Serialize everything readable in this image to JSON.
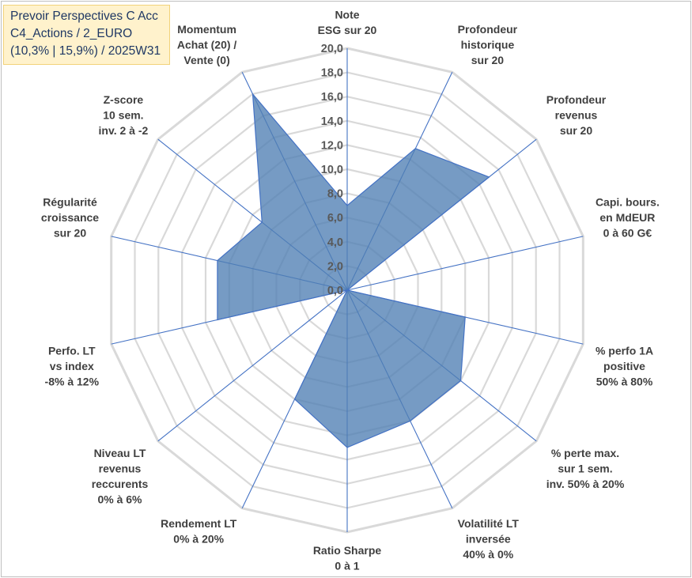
{
  "title_box": {
    "line1": "Prevoir Perspectives C Acc",
    "line2": "C4_Actions / 2_EURO",
    "line3": "(10,3% | 15,9%) / 2025W31"
  },
  "colors": {
    "grid": "#d9d9d9",
    "spoke": "#4472c4",
    "fill": "#4f7fb3",
    "stroke": "#4472c4",
    "title_bg": "#fff2cc",
    "title_text": "#1f3864"
  },
  "chart_data": {
    "type": "radar",
    "rmin": 0,
    "rmax": 20,
    "tick_step": 2,
    "ticks": [
      "0,0",
      "2,0",
      "4,0",
      "6,0",
      "8,0",
      "10,0",
      "12,0",
      "14,0",
      "16,0",
      "18,0",
      "20,0"
    ],
    "axes": [
      [
        "Note",
        "ESG sur 20"
      ],
      [
        "Profondeur",
        "historique",
        "sur 20"
      ],
      [
        "Profondeur",
        "revenus",
        "sur 20"
      ],
      [
        "Capi. bours.",
        "en MdEUR",
        "0 à 60 G€"
      ],
      [
        "% perfo 1A",
        "positive",
        "50% à 80%"
      ],
      [
        "% perte max.",
        "sur 1 sem.",
        "inv. 50% à 20%"
      ],
      [
        "Volatilité LT",
        "inversée",
        "40% à 0%"
      ],
      [
        "Ratio Sharpe",
        "0 à 1"
      ],
      [
        "Rendement LT",
        "0% à 20%"
      ],
      [
        "Niveau LT",
        "revenus",
        "reccurents",
        "0% à 6%"
      ],
      [
        "Perfo. LT",
        "vs index",
        "-8% à 12%"
      ],
      [
        "Régularité",
        "croissance",
        "sur 20"
      ],
      [
        "Z-score",
        "10 sem.",
        "inv. 2 à -2"
      ],
      [
        "Momentum",
        "Achat (20) /",
        "Vente (0)"
      ]
    ],
    "values": [
      7,
      13,
      15,
      0,
      10,
      12,
      12,
      13,
      10,
      0,
      11,
      11,
      9,
      18
    ],
    "grid": true,
    "legend": "none"
  }
}
